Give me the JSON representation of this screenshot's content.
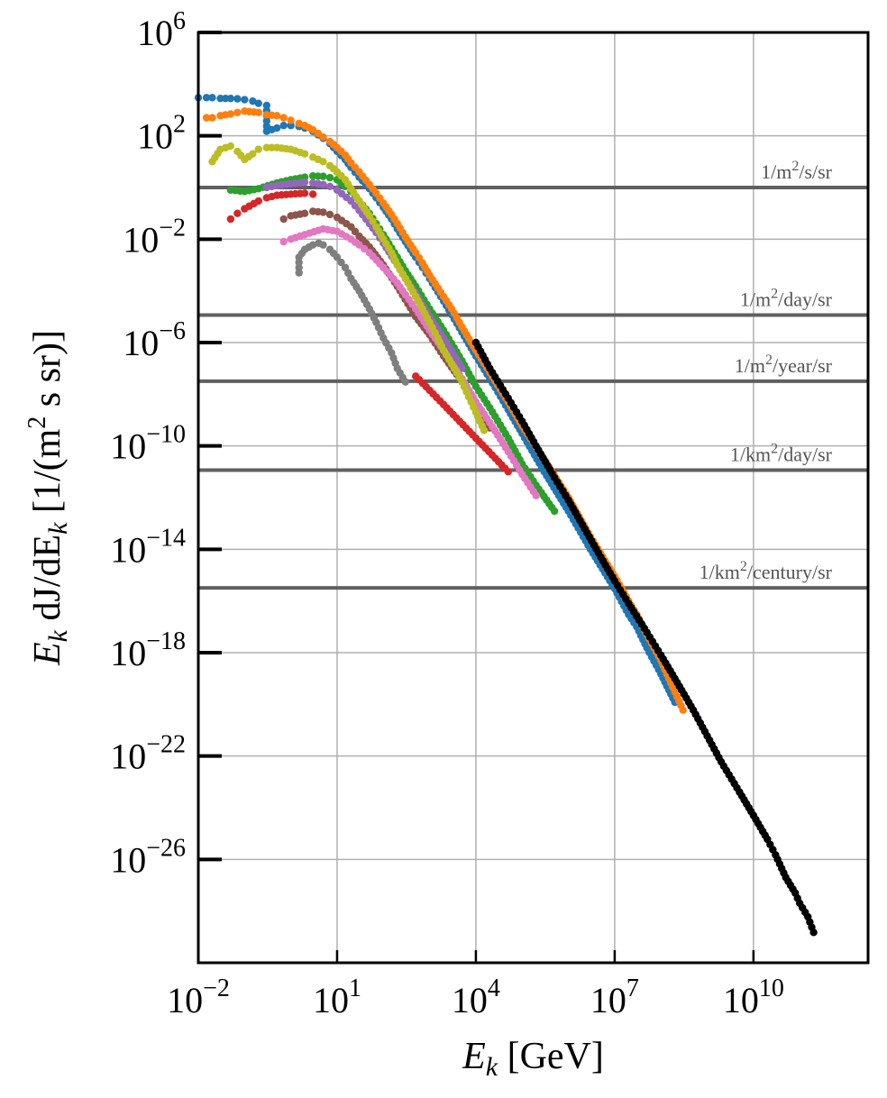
{
  "chart_data": {
    "type": "scatter",
    "xscale": "log",
    "yscale": "log",
    "xlim": [
      0.01,
      3000000000000
    ],
    "ylim": [
      1e-30,
      1000000
    ],
    "grid": true,
    "xlabel_main": "E",
    "xlabel_sub": "k",
    "xlabel_unit": " [GeV]",
    "ylabel_main": "E",
    "ylabel_sub": "k",
    "ylabel_mid": " dJ/dE",
    "ylabel_sub2": "k",
    "ylabel_unit_pre": " [1/(m",
    "ylabel_unit_sup": "2",
    "ylabel_unit_post": " s sr)]",
    "xticks": [
      {
        "value": 0.01,
        "base": "10",
        "exp": "−2"
      },
      {
        "value": 10,
        "base": "10",
        "exp": "1"
      },
      {
        "value": 10000,
        "base": "10",
        "exp": "4"
      },
      {
        "value": 10000000,
        "base": "10",
        "exp": "7"
      },
      {
        "value": 10000000000,
        "base": "10",
        "exp": "10"
      }
    ],
    "yticks": [
      {
        "value": 1000000,
        "base": "10",
        "exp": "6"
      },
      {
        "value": 100,
        "base": "10",
        "exp": "2"
      },
      {
        "value": 0.01,
        "base": "10",
        "exp": "−2"
      },
      {
        "value": 1e-06,
        "base": "10",
        "exp": "−6"
      },
      {
        "value": 1e-10,
        "base": "10",
        "exp": "−10"
      },
      {
        "value": 1e-14,
        "base": "10",
        "exp": "−14"
      },
      {
        "value": 1e-18,
        "base": "10",
        "exp": "−18"
      },
      {
        "value": 1e-22,
        "base": "10",
        "exp": "−22"
      },
      {
        "value": 1e-26,
        "base": "10",
        "exp": "−26"
      }
    ],
    "reference_lines": [
      {
        "value": 1.0,
        "pre": "1/m",
        "sup": "2",
        "post": "/s/sr"
      },
      {
        "value": 1.16e-05,
        "pre": "1/m",
        "sup": "2",
        "post": "/day/sr"
      },
      {
        "value": 3.2e-08,
        "pre": "1/m",
        "sup": "2",
        "post": "/year/sr"
      },
      {
        "value": 1.16e-11,
        "pre": "1/km",
        "sup": "2",
        "post": "/day/sr"
      },
      {
        "value": 3.2e-16,
        "pre": "1/km",
        "sup": "2",
        "post": "/century/sr"
      }
    ],
    "colors": {
      "ref_line": "#606060",
      "grid": "#b0b0b0",
      "blue": "#1f77b4",
      "orange": "#ff7f0e",
      "green": "#2ca02c",
      "red": "#d62728",
      "purple": "#9467bd",
      "brown": "#8c564b",
      "pink": "#e377c2",
      "gray": "#7f7f7f",
      "olive": "#bcbd22",
      "black": "#000000"
    },
    "series": [
      {
        "color": "blue",
        "points": [
          [
            0.01,
            3000
          ],
          [
            0.015,
            3000
          ],
          [
            0.02,
            3000
          ],
          [
            0.03,
            2800
          ],
          [
            0.05,
            2800
          ],
          [
            0.07,
            2700
          ],
          [
            0.1,
            2500
          ],
          [
            0.15,
            2200
          ],
          [
            0.2,
            1800
          ],
          [
            0.3,
            1500
          ],
          [
            0.3,
            150
          ],
          [
            0.5,
            200
          ],
          [
            0.7,
            250
          ],
          [
            1,
            250
          ],
          [
            1.5,
            230
          ],
          [
            2,
            200
          ],
          [
            3,
            150
          ],
          [
            5,
            80
          ],
          [
            7,
            50
          ],
          [
            10,
            25
          ],
          [
            15,
            12
          ],
          [
            20,
            6
          ],
          [
            30,
            2.5
          ],
          [
            50,
            0.9
          ],
          [
            70,
            0.4
          ],
          [
            100,
            0.17
          ],
          [
            150,
            0.06
          ],
          [
            200,
            0.025
          ],
          [
            300,
            0.008
          ],
          [
            500,
            0.002
          ],
          [
            700,
            0.0008
          ],
          [
            1000,
            0.0003
          ],
          [
            2000,
            4e-05
          ],
          [
            3000,
            1.2e-05
          ],
          [
            5000,
            2.5e-06
          ],
          [
            10000,
            3e-07
          ],
          [
            20000,
            4e-08
          ],
          [
            30000,
            1.2e-08
          ],
          [
            50000,
            2.5e-09
          ],
          [
            100000,
            3e-10
          ],
          [
            300000,
            1e-11
          ],
          [
            1000000,
            3e-13
          ],
          [
            3000000,
            1e-14
          ],
          [
            10000000,
            3e-16
          ],
          [
            20000000,
            3e-17
          ],
          [
            30000000,
            1e-17
          ],
          [
            50000000,
            1.5e-18
          ],
          [
            100000000,
            1.5e-19
          ],
          [
            200000000,
            1.2e-20
          ]
        ]
      },
      {
        "color": "orange",
        "points": [
          [
            0.015,
            500
          ],
          [
            0.02,
            500
          ],
          [
            0.03,
            600
          ],
          [
            0.05,
            700
          ],
          [
            0.07,
            800
          ],
          [
            0.1,
            900
          ],
          [
            0.2,
            800
          ],
          [
            0.3,
            650
          ],
          [
            0.5,
            600
          ],
          [
            0.7,
            500
          ],
          [
            1,
            400
          ],
          [
            1.5,
            300
          ],
          [
            2,
            250
          ],
          [
            3,
            170
          ],
          [
            5,
            90
          ],
          [
            7,
            60
          ],
          [
            10,
            35
          ],
          [
            15,
            18
          ],
          [
            20,
            9
          ],
          [
            30,
            4
          ],
          [
            50,
            1.3
          ],
          [
            70,
            0.6
          ],
          [
            100,
            0.25
          ],
          [
            150,
            0.09
          ],
          [
            200,
            0.04
          ],
          [
            300,
            0.012
          ],
          [
            500,
            0.003
          ],
          [
            700,
            0.0012
          ],
          [
            1000,
            0.0004
          ],
          [
            2000,
            6e-05
          ],
          [
            3000,
            2e-05
          ],
          [
            5000,
            4e-06
          ],
          [
            10000,
            5e-07
          ],
          [
            20000,
            7e-08
          ],
          [
            50000,
            5e-09
          ],
          [
            100000,
            6e-10
          ],
          [
            300000,
            3e-11
          ],
          [
            1000000,
            1e-12
          ],
          [
            3000000,
            3e-14
          ],
          [
            10000000,
            9e-16
          ],
          [
            20000000,
            1e-16
          ],
          [
            30000000,
            3e-17
          ],
          [
            50000000,
            5e-18
          ],
          [
            100000000,
            5e-19
          ],
          [
            200000000,
            3e-20
          ],
          [
            300000000,
            6e-21
          ]
        ]
      },
      {
        "color": "green",
        "points": [
          [
            0.05,
            0.8
          ],
          [
            0.1,
            0.7
          ],
          [
            0.2,
            0.9
          ],
          [
            0.5,
            1.5
          ],
          [
            1,
            2
          ],
          [
            2,
            2.5
          ],
          [
            3,
            2.8
          ],
          [
            5,
            2.7
          ],
          [
            7,
            2.4
          ],
          [
            10,
            2
          ],
          [
            15,
            1.1
          ],
          [
            20,
            0.7
          ],
          [
            30,
            0.3
          ],
          [
            50,
            0.1
          ],
          [
            70,
            0.04
          ],
          [
            100,
            0.015
          ],
          [
            200,
            0.002
          ],
          [
            300,
            0.0006
          ],
          [
            500,
            0.00015
          ],
          [
            1000,
            2e-05
          ],
          [
            2000,
            3e-06
          ],
          [
            5000,
            2e-07
          ],
          [
            10000,
            2e-08
          ],
          [
            20000,
            3e-09
          ],
          [
            50000,
            2e-10
          ],
          [
            100000,
            2e-11
          ],
          [
            200000,
            3e-12
          ],
          [
            500000,
            3e-13
          ]
        ]
      },
      {
        "color": "red",
        "points": [
          [
            0.05,
            0.06
          ],
          [
            0.07,
            0.1
          ],
          [
            0.1,
            0.15
          ],
          [
            0.2,
            0.3
          ],
          [
            0.3,
            0.4
          ],
          [
            0.5,
            0.5
          ],
          [
            1,
            0.55
          ],
          [
            2,
            0.6
          ],
          [
            3,
            0.55
          ],
          [
            500,
            5e-08
          ],
          [
            2000,
            4e-09
          ],
          [
            10000,
            2e-10
          ],
          [
            50000,
            1e-11
          ]
        ]
      },
      {
        "color": "purple",
        "points": [
          [
            0.3,
            1
          ],
          [
            0.5,
            1.2
          ],
          [
            1,
            1.4
          ],
          [
            2,
            1.6
          ],
          [
            3,
            1.5
          ],
          [
            5,
            1.3
          ],
          [
            7,
            1.1
          ],
          [
            10,
            0.8
          ],
          [
            20,
            0.3
          ],
          [
            30,
            0.13
          ],
          [
            50,
            0.04
          ],
          [
            70,
            0.018
          ],
          [
            100,
            0.007
          ],
          [
            200,
            0.001
          ],
          [
            300,
            0.0003
          ],
          [
            500,
            8e-05
          ],
          [
            1000,
            1e-05
          ],
          [
            2000,
            1.5e-06
          ],
          [
            5000,
            1e-07
          ]
        ]
      },
      {
        "color": "brown",
        "points": [
          [
            0.7,
            0.06
          ],
          [
            1,
            0.08
          ],
          [
            2,
            0.1
          ],
          [
            3,
            0.12
          ],
          [
            5,
            0.11
          ],
          [
            7,
            0.09
          ],
          [
            10,
            0.07
          ],
          [
            20,
            0.03
          ],
          [
            30,
            0.013
          ],
          [
            50,
            0.005
          ],
          [
            100,
            0.001
          ],
          [
            200,
            0.00015
          ],
          [
            500,
            1e-05
          ],
          [
            1000,
            2e-06
          ],
          [
            2000,
            3e-07
          ],
          [
            5000,
            3e-08
          ],
          [
            10000,
            4e-09
          ],
          [
            20000,
            5e-10
          ]
        ]
      },
      {
        "color": "pink",
        "points": [
          [
            0.7,
            0.008
          ],
          [
            1,
            0.01
          ],
          [
            2,
            0.015
          ],
          [
            5,
            0.025
          ],
          [
            10,
            0.02
          ],
          [
            20,
            0.01
          ],
          [
            30,
            0.006
          ],
          [
            50,
            0.003
          ],
          [
            100,
            0.0008
          ],
          [
            200,
            0.0002
          ],
          [
            300,
            7e-05
          ],
          [
            500,
            2e-05
          ],
          [
            1000,
            3e-06
          ],
          [
            2000,
            5e-07
          ],
          [
            3000,
            1.5e-07
          ],
          [
            5000,
            4e-08
          ],
          [
            10000,
            5e-09
          ],
          [
            20000,
            8e-10
          ],
          [
            50000,
            6e-11
          ],
          [
            100000,
            8e-12
          ],
          [
            200000,
            1.2e-12
          ]
        ]
      },
      {
        "color": "gray",
        "points": [
          [
            1.5,
            0.0005
          ],
          [
            1.5,
            0.002
          ],
          [
            2,
            0.004
          ],
          [
            3,
            0.006
          ],
          [
            4,
            0.007
          ],
          [
            5,
            0.006
          ],
          [
            7,
            0.004
          ],
          [
            10,
            0.002
          ],
          [
            15,
            0.0008
          ],
          [
            20,
            0.0003
          ],
          [
            30,
            0.0001
          ],
          [
            50,
            2e-05
          ],
          [
            70,
            6e-06
          ],
          [
            100,
            1.5e-06
          ],
          [
            150,
            4e-07
          ],
          [
            200,
            1e-07
          ],
          [
            300,
            3e-08
          ]
        ]
      },
      {
        "color": "olive",
        "points": [
          [
            0.02,
            10
          ],
          [
            0.03,
            30
          ],
          [
            0.05,
            40
          ],
          [
            0.07,
            25
          ],
          [
            0.1,
            12
          ],
          [
            0.15,
            20
          ],
          [
            0.2,
            30
          ],
          [
            0.3,
            35
          ],
          [
            0.5,
            35
          ],
          [
            1,
            30
          ],
          [
            2,
            20
          ],
          [
            3,
            15
          ],
          [
            5,
            10
          ],
          [
            7,
            7
          ],
          [
            10,
            4
          ],
          [
            15,
            2
          ],
          [
            20,
            0.9
          ],
          [
            30,
            0.3
          ],
          [
            50,
            0.08
          ],
          [
            70,
            0.03
          ],
          [
            100,
            0.01
          ],
          [
            150,
            0.003
          ],
          [
            200,
            0.001
          ],
          [
            300,
            0.0003
          ],
          [
            500,
            6e-05
          ],
          [
            700,
            2e-05
          ],
          [
            1000,
            6e-06
          ],
          [
            1500,
            1.5e-06
          ],
          [
            2000,
            5e-07
          ],
          [
            3000,
            1.5e-07
          ],
          [
            5000,
            3e-08
          ],
          [
            7000,
            8e-09
          ],
          [
            10000,
            2e-09
          ],
          [
            15000,
            4e-10
          ]
        ]
      },
      {
        "color": "black",
        "points": [
          [
            10000,
            1e-06
          ],
          [
            20000,
            1e-07
          ],
          [
            50000,
            7e-09
          ],
          [
            100000,
            9e-10
          ],
          [
            200000,
            1e-10
          ],
          [
            500000,
            6e-12
          ],
          [
            1000000,
            8e-13
          ],
          [
            2000000,
            9e-14
          ],
          [
            5000000,
            5e-15
          ],
          [
            10000000,
            6e-16
          ],
          [
            20000000,
            8e-17
          ],
          [
            50000000,
            6e-18
          ],
          [
            100000000,
            8e-19
          ],
          [
            200000000,
            1e-19
          ],
          [
            500000000,
            6e-21
          ],
          [
            1000000000,
            6e-22
          ],
          [
            2000000000,
            6e-23
          ],
          [
            5000000000,
            4e-24
          ],
          [
            10000000000,
            5e-25
          ],
          [
            20000000000,
            6e-26
          ],
          [
            30000000000,
            1.5e-26
          ],
          [
            50000000000,
            2e-27
          ],
          [
            80000000000,
            5e-28
          ],
          [
            100000000000,
            2e-28
          ],
          [
            150000000000,
            6e-29
          ],
          [
            200000000000,
            1.5e-29
          ]
        ]
      }
    ]
  }
}
